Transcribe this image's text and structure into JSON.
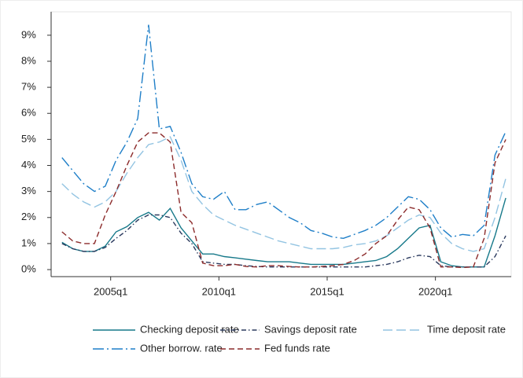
{
  "chart_data": {
    "type": "line",
    "x": [
      "2002q4",
      "2003q2",
      "2003q4",
      "2004q2",
      "2004q4",
      "2005q2",
      "2005q4",
      "2006q2",
      "2006q4",
      "2007q2",
      "2007q4",
      "2008q2",
      "2008q4",
      "2009q2",
      "2009q4",
      "2010q2",
      "2010q4",
      "2011q2",
      "2011q4",
      "2012q2",
      "2012q4",
      "2013q2",
      "2013q4",
      "2014q2",
      "2014q4",
      "2015q2",
      "2015q4",
      "2016q2",
      "2016q4",
      "2017q2",
      "2017q4",
      "2018q2",
      "2018q4",
      "2019q2",
      "2019q4",
      "2020q2",
      "2020q4",
      "2021q2",
      "2021q4",
      "2022q2",
      "2022q4",
      "2023q2"
    ],
    "series": [
      {
        "name": "Checking deposit rate",
        "color": "#17798a",
        "dash": "solid",
        "values": [
          1.05,
          0.8,
          0.7,
          0.7,
          0.9,
          1.45,
          1.65,
          2.0,
          2.2,
          1.9,
          2.35,
          1.6,
          1.1,
          0.6,
          0.6,
          0.5,
          0.45,
          0.4,
          0.35,
          0.3,
          0.3,
          0.3,
          0.25,
          0.2,
          0.2,
          0.2,
          0.2,
          0.25,
          0.3,
          0.35,
          0.5,
          0.8,
          1.2,
          1.6,
          1.7,
          0.3,
          0.15,
          0.1,
          0.1,
          0.1,
          1.3,
          2.75
        ]
      },
      {
        "name": "Savings deposit rate",
        "color": "#2b3a5e",
        "dash": "dashdot",
        "values": [
          1.0,
          0.8,
          0.7,
          0.7,
          0.85,
          1.2,
          1.5,
          1.9,
          2.1,
          2.1,
          2.0,
          1.4,
          1.0,
          0.3,
          0.25,
          0.2,
          0.2,
          0.15,
          0.12,
          0.1,
          0.1,
          0.1,
          0.1,
          0.1,
          0.1,
          0.1,
          0.1,
          0.1,
          0.1,
          0.15,
          0.2,
          0.3,
          0.45,
          0.55,
          0.5,
          0.15,
          0.1,
          0.1,
          0.1,
          0.1,
          0.5,
          1.3
        ]
      },
      {
        "name": "Time deposit rate",
        "color": "#93c4e2",
        "dash": "longdash",
        "values": [
          3.3,
          2.9,
          2.6,
          2.4,
          2.6,
          3.0,
          3.7,
          4.3,
          4.8,
          4.9,
          5.1,
          4.2,
          3.0,
          2.5,
          2.1,
          1.9,
          1.7,
          1.55,
          1.4,
          1.25,
          1.1,
          1.0,
          0.9,
          0.8,
          0.8,
          0.8,
          0.85,
          0.95,
          1.0,
          1.1,
          1.3,
          1.6,
          1.9,
          2.1,
          2.0,
          1.4,
          1.0,
          0.8,
          0.7,
          0.8,
          2.0,
          3.5
        ]
      },
      {
        "name": "Other borrow. rate",
        "color": "#1f7fc8",
        "dash": "longdashdot",
        "values": [
          4.3,
          3.8,
          3.3,
          3.0,
          3.2,
          4.2,
          4.9,
          5.8,
          9.4,
          5.4,
          5.5,
          4.5,
          3.3,
          2.8,
          2.7,
          3.0,
          2.3,
          2.3,
          2.5,
          2.6,
          2.3,
          2.0,
          1.8,
          1.5,
          1.4,
          1.25,
          1.2,
          1.35,
          1.5,
          1.7,
          2.0,
          2.4,
          2.8,
          2.7,
          2.3,
          1.6,
          1.25,
          1.35,
          1.3,
          1.7,
          4.4,
          5.3
        ]
      },
      {
        "name": "Fed funds rate",
        "color": "#8c2b2b",
        "dash": "dash",
        "values": [
          1.45,
          1.1,
          1.0,
          1.0,
          2.1,
          3.0,
          4.0,
          4.9,
          5.25,
          5.25,
          4.9,
          2.2,
          1.8,
          0.25,
          0.15,
          0.15,
          0.2,
          0.12,
          0.1,
          0.15,
          0.15,
          0.12,
          0.1,
          0.1,
          0.12,
          0.15,
          0.2,
          0.35,
          0.6,
          1.0,
          1.3,
          1.9,
          2.4,
          2.3,
          1.6,
          0.1,
          0.1,
          0.08,
          0.1,
          1.2,
          4.1,
          5.0
        ]
      }
    ],
    "xlim": [
      "2002q2",
      "2023q3"
    ],
    "xticks": [
      "2005q1",
      "2010q1",
      "2015q1",
      "2020q1"
    ],
    "ylim": [
      -0.27,
      9.9
    ],
    "yticks": [
      {
        "value": 0,
        "label": "0%"
      },
      {
        "value": 1,
        "label": "1%"
      },
      {
        "value": 2,
        "label": "2%"
      },
      {
        "value": 3,
        "label": "3%"
      },
      {
        "value": 4,
        "label": "4%"
      },
      {
        "value": 5,
        "label": "5%"
      },
      {
        "value": 6,
        "label": "6%"
      },
      {
        "value": 7,
        "label": "7%"
      },
      {
        "value": 8,
        "label": "8%"
      },
      {
        "value": 9,
        "label": "9%"
      }
    ],
    "grid": false,
    "legend": "bottom"
  }
}
